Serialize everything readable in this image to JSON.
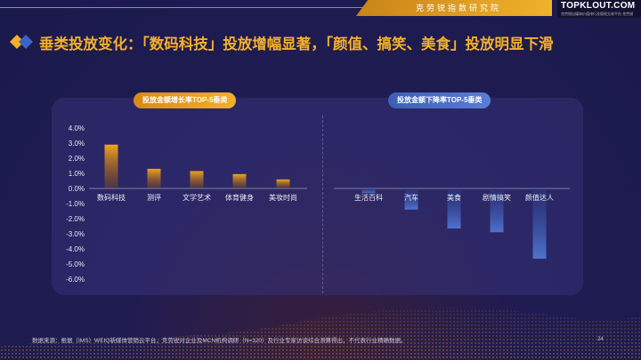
{
  "header": {
    "brand_cn": "克劳锐指数研究院",
    "logo_text": "TOPKLOUT.COM",
    "logo_subtext": "克劳锐自媒体价值排行及版权交易平台 克劳锐"
  },
  "title": "垂类投放变化：「数码科技」投放增幅显著，「颜值、搞笑、美食」投放明显下滑",
  "left_panel": {
    "pill": "投放金额增长率TOP-5垂类"
  },
  "right_panel": {
    "pill": "投放金额下降率TOP-5垂类"
  },
  "colors": {
    "increase": "#f0a51f",
    "decrease": "#4f73cf",
    "title": "#f4b128"
  },
  "chart_data": {
    "type": "bar",
    "y_tick_labels": [
      "4.0%",
      "3.0%",
      "2.0%",
      "1.0%",
      "0.0%",
      "-1.0%",
      "-2.0%",
      "-3.0%",
      "-4.0%",
      "-5.0%",
      "-6.0%"
    ],
    "ylim": [
      -6,
      4
    ],
    "grid": false,
    "series": [
      {
        "categories": [
          "数码科技",
          "测评",
          "文学艺术",
          "体育健身",
          "美妆时尚"
        ],
        "values": [
          2.9,
          1.3,
          1.15,
          0.95,
          0.6
        ]
      },
      {
        "categories": [
          "生活百科",
          "汽车",
          "美食",
          "剧情搞笑",
          "颜值达人"
        ],
        "values": [
          -0.3,
          -1.4,
          -2.65,
          -2.9,
          -4.65
        ]
      }
    ]
  },
  "footer": {
    "source": "数据来源：根据（IMS）WEIQ新媒体营销云平台，克劳锐对企业及MCN机构调研（N=320）及行业专家访谈综合测算得出，不代表行业精确数据。",
    "page": "24"
  }
}
